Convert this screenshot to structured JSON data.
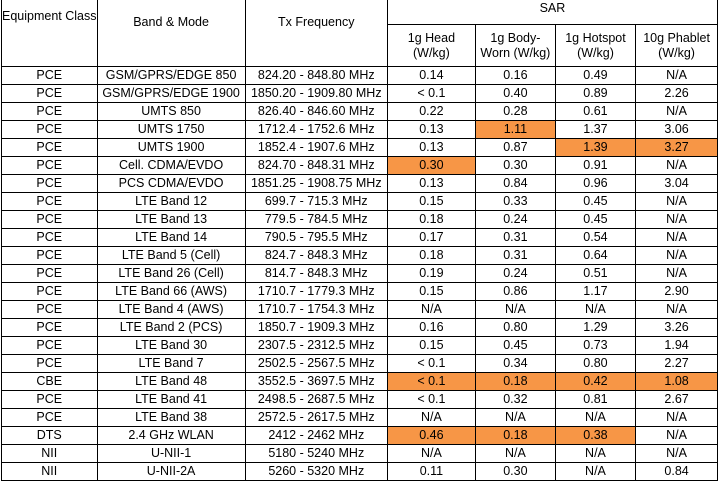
{
  "headers": {
    "equipment_class": "Equipment Class",
    "band_mode": "Band & Mode",
    "tx_frequency": "Tx Frequency",
    "sar": "SAR",
    "head": "1g Head (W/kg)",
    "body_worn": "1g Body-Worn (W/kg)",
    "hotspot": "1g Hotspot (W/kg)",
    "phablet": "10g Phablet (W/kg)"
  },
  "highlight_color": "#f79646",
  "rows": [
    {
      "class": "PCE",
      "band": "GSM/GPRS/EDGE 850",
      "freq": "824.20 - 848.80 MHz",
      "head": "0.14",
      "body": "0.16",
      "hotspot": "0.49",
      "phablet": "N/A",
      "highlight": []
    },
    {
      "class": "PCE",
      "band": "GSM/GPRS/EDGE 1900",
      "freq": "1850.20 - 1909.80 MHz",
      "head": "< 0.1",
      "body": "0.40",
      "hotspot": "0.89",
      "phablet": "2.26",
      "highlight": []
    },
    {
      "class": "PCE",
      "band": "UMTS 850",
      "freq": "826.40 - 846.60 MHz",
      "head": "0.22",
      "body": "0.28",
      "hotspot": "0.61",
      "phablet": "N/A",
      "highlight": []
    },
    {
      "class": "PCE",
      "band": "UMTS 1750",
      "freq": "1712.4 - 1752.6 MHz",
      "head": "0.13",
      "body": "1.11",
      "hotspot": "1.37",
      "phablet": "3.06",
      "highlight": [
        "body"
      ]
    },
    {
      "class": "PCE",
      "band": "UMTS 1900",
      "freq": "1852.4 - 1907.6 MHz",
      "head": "0.13",
      "body": "0.87",
      "hotspot": "1.39",
      "phablet": "3.27",
      "highlight": [
        "hotspot",
        "phablet"
      ]
    },
    {
      "class": "PCE",
      "band": "Cell. CDMA/EVDO",
      "freq": "824.70 - 848.31 MHz",
      "head": "0.30",
      "body": "0.30",
      "hotspot": "0.91",
      "phablet": "N/A",
      "highlight": [
        "head"
      ]
    },
    {
      "class": "PCE",
      "band": "PCS CDMA/EVDO",
      "freq": "1851.25 - 1908.75 MHz",
      "head": "0.13",
      "body": "0.84",
      "hotspot": "0.96",
      "phablet": "3.04",
      "highlight": []
    },
    {
      "class": "PCE",
      "band": "LTE Band 12",
      "freq": "699.7 - 715.3 MHz",
      "head": "0.15",
      "body": "0.33",
      "hotspot": "0.45",
      "phablet": "N/A",
      "highlight": []
    },
    {
      "class": "PCE",
      "band": "LTE Band 13",
      "freq": "779.5 - 784.5 MHz",
      "head": "0.18",
      "body": "0.24",
      "hotspot": "0.45",
      "phablet": "N/A",
      "highlight": []
    },
    {
      "class": "PCE",
      "band": "LTE Band 14",
      "freq": "790.5 - 795.5 MHz",
      "head": "0.17",
      "body": "0.31",
      "hotspot": "0.54",
      "phablet": "N/A",
      "highlight": []
    },
    {
      "class": "PCE",
      "band": "LTE Band 5 (Cell)",
      "freq": "824.7 - 848.3 MHz",
      "head": "0.18",
      "body": "0.31",
      "hotspot": "0.64",
      "phablet": "N/A",
      "highlight": []
    },
    {
      "class": "PCE",
      "band": "LTE Band 26 (Cell)",
      "freq": "814.7 - 848.3 MHz",
      "head": "0.19",
      "body": "0.24",
      "hotspot": "0.51",
      "phablet": "N/A",
      "highlight": []
    },
    {
      "class": "PCE",
      "band": "LTE Band 66 (AWS)",
      "freq": "1710.7 - 1779.3 MHz",
      "head": "0.15",
      "body": "0.86",
      "hotspot": "1.17",
      "phablet": "2.90",
      "highlight": []
    },
    {
      "class": "PCE",
      "band": "LTE Band 4 (AWS)",
      "freq": "1710.7 - 1754.3 MHz",
      "head": "N/A",
      "body": "N/A",
      "hotspot": "N/A",
      "phablet": "N/A",
      "highlight": []
    },
    {
      "class": "PCE",
      "band": "LTE Band 2 (PCS)",
      "freq": "1850.7 - 1909.3 MHz",
      "head": "0.16",
      "body": "0.80",
      "hotspot": "1.29",
      "phablet": "3.26",
      "highlight": []
    },
    {
      "class": "PCE",
      "band": "LTE Band 30",
      "freq": "2307.5 - 2312.5 MHz",
      "head": "0.15",
      "body": "0.45",
      "hotspot": "0.73",
      "phablet": "1.94",
      "highlight": []
    },
    {
      "class": "PCE",
      "band": "LTE Band 7",
      "freq": "2502.5 - 2567.5 MHz",
      "head": "< 0.1",
      "body": "0.34",
      "hotspot": "0.80",
      "phablet": "2.27",
      "highlight": []
    },
    {
      "class": "CBE",
      "band": "LTE Band 48",
      "freq": "3552.5 - 3697.5 MHz",
      "head": "< 0.1",
      "body": "0.18",
      "hotspot": "0.42",
      "phablet": "1.08",
      "highlight": [
        "head",
        "body",
        "hotspot",
        "phablet"
      ]
    },
    {
      "class": "PCE",
      "band": "LTE Band 41",
      "freq": "2498.5 - 2687.5 MHz",
      "head": "< 0.1",
      "body": "0.32",
      "hotspot": "0.81",
      "phablet": "2.67",
      "highlight": []
    },
    {
      "class": "PCE",
      "band": "LTE Band 38",
      "freq": "2572.5 - 2617.5 MHz",
      "head": "N/A",
      "body": "N/A",
      "hotspot": "N/A",
      "phablet": "N/A",
      "highlight": []
    },
    {
      "class": "DTS",
      "band": "2.4 GHz WLAN",
      "freq": "2412 - 2462 MHz",
      "head": "0.46",
      "body": "0.18",
      "hotspot": "0.38",
      "phablet": "N/A",
      "highlight": [
        "head",
        "body",
        "hotspot"
      ]
    },
    {
      "class": "NII",
      "band": "U-NII-1",
      "freq": "5180 - 5240 MHz",
      "head": "N/A",
      "body": "N/A",
      "hotspot": "N/A",
      "phablet": "N/A",
      "highlight": []
    },
    {
      "class": "NII",
      "band": "U-NII-2A",
      "freq": "5260 - 5320 MHz",
      "head": "0.11",
      "body": "0.30",
      "hotspot": "N/A",
      "phablet": "0.84",
      "highlight": []
    }
  ]
}
